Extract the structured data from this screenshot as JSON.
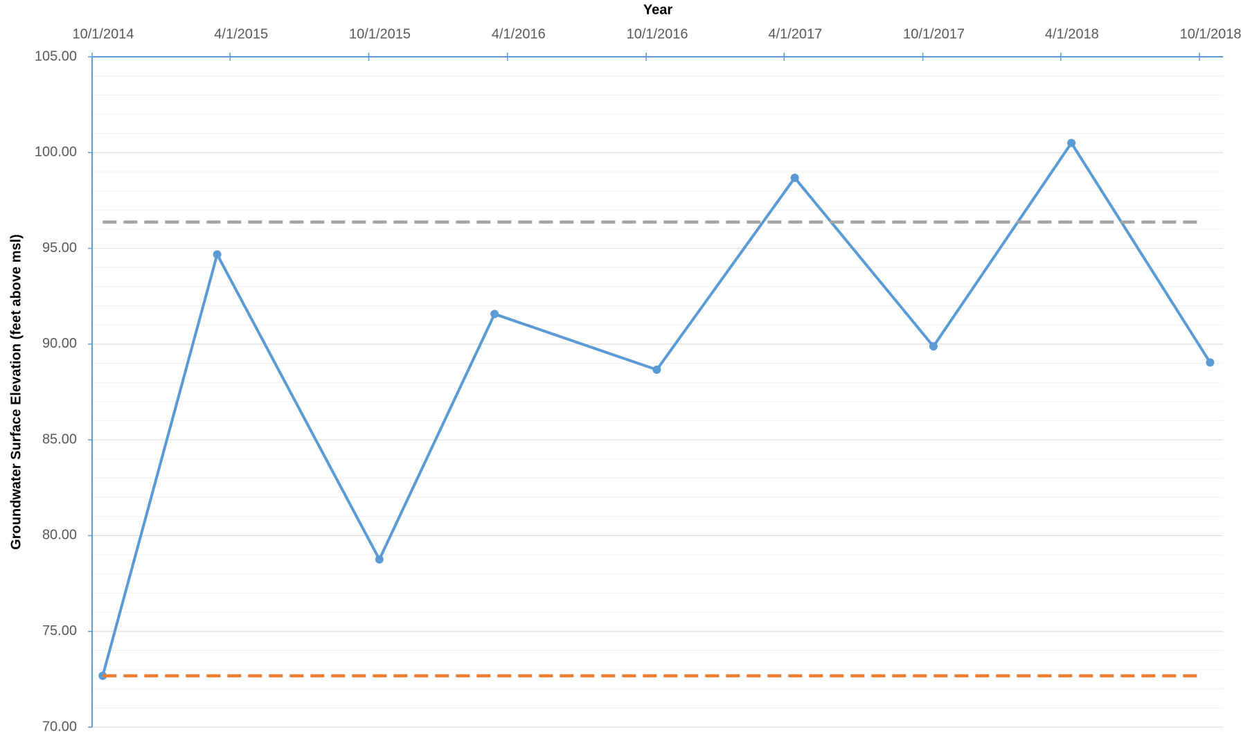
{
  "chart_data": {
    "type": "line",
    "x_label": "Year",
    "y_label": "Groundwater Surface Elevation (feet above msl)",
    "series": [
      {
        "color": "#5b9bd5",
        "style": "solid",
        "markers": true,
        "x": [
          "10/15/2014",
          "3/15/2015",
          "10/15/2015",
          "3/15/2016",
          "10/15/2016",
          "4/15/2017",
          "10/15/2017",
          "4/15/2018",
          "10/15/2018"
        ],
        "values": [
          72.68,
          94.68,
          78.76,
          91.57,
          88.66,
          98.68,
          89.88,
          100.5,
          89.04
        ]
      },
      {
        "color": "#a5a5a5",
        "style": "dashed",
        "markers": false,
        "x": [
          "10/15/2014",
          "10/1/2018"
        ],
        "values": [
          96.37,
          96.37
        ]
      },
      {
        "color": "#ed7d31",
        "style": "dashed",
        "markers": false,
        "x": [
          "10/15/2014",
          "10/1/2018"
        ],
        "values": [
          72.68,
          72.68
        ]
      }
    ],
    "xlim": [
      "10/1/2014",
      "11/1/2018"
    ],
    "xticks": [
      "10/1/2014",
      "4/1/2015",
      "10/1/2015",
      "4/1/2016",
      "10/1/2016",
      "4/1/2017",
      "10/1/2017",
      "4/1/2018",
      "10/1/2018"
    ],
    "x_axis_position": "top",
    "ylim": [
      70,
      105
    ],
    "yticks": [
      {
        "value": 70,
        "label": "70.00"
      },
      {
        "value": 75,
        "label": "75.00"
      },
      {
        "value": 80,
        "label": "80.00"
      },
      {
        "value": 85,
        "label": "85.00"
      },
      {
        "value": 90,
        "label": "90.00"
      },
      {
        "value": 95,
        "label": "95.00"
      },
      {
        "value": 100,
        "label": "100.00"
      },
      {
        "value": 105,
        "label": "105.00"
      }
    ],
    "grid": true,
    "minor_grid": 1
  }
}
